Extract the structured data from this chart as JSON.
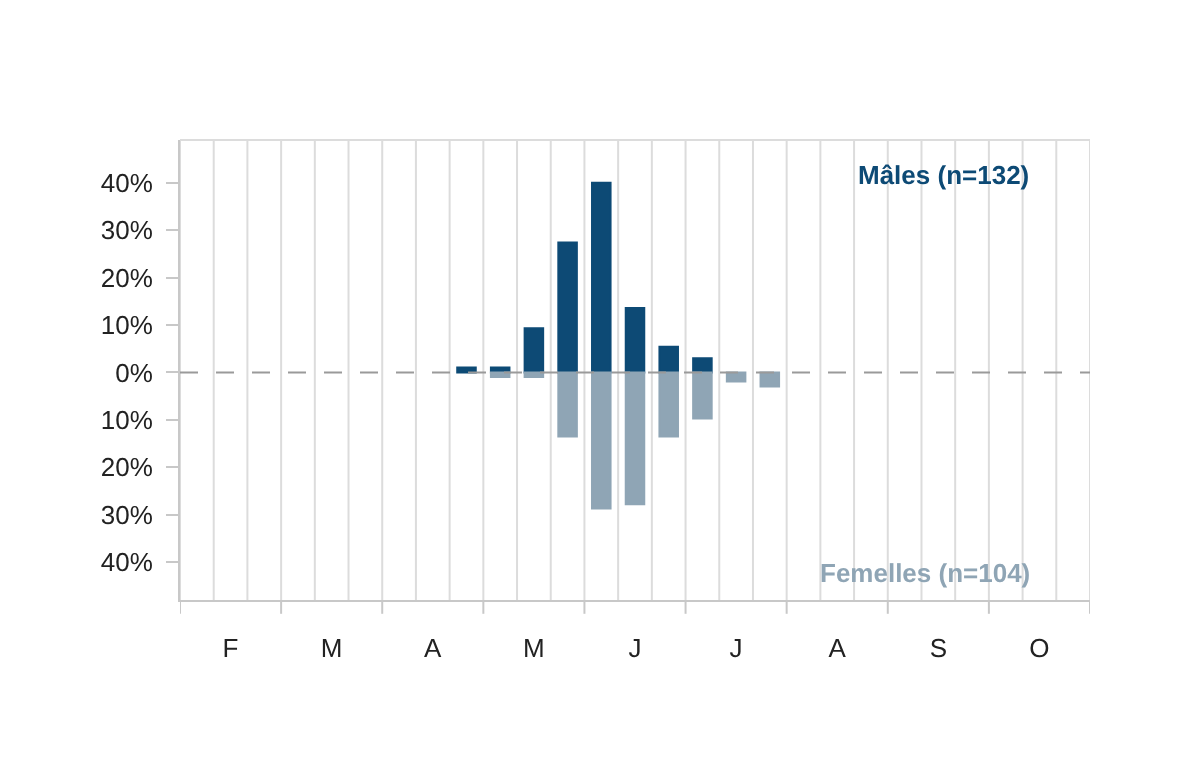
{
  "chart_data": {
    "type": "bar",
    "categories": [
      null,
      "F",
      null,
      null,
      "M",
      null,
      null,
      "A",
      null,
      null,
      "M",
      null,
      null,
      "J",
      null,
      null,
      "J",
      null,
      null,
      "A",
      null,
      null,
      "S",
      null,
      null,
      "O",
      null
    ],
    "series": [
      {
        "name": "Mâles (n=132)",
        "color": "#0d4a75",
        "values": [
          null,
          null,
          null,
          null,
          null,
          null,
          null,
          null,
          1,
          1,
          9.3,
          27.4,
          40,
          13.6,
          5.4,
          3,
          null,
          null,
          null,
          null,
          null,
          null,
          null,
          null,
          null,
          null,
          null
        ]
      },
      {
        "name": "Femelles (n=104)",
        "color": "#8fa5b5",
        "values": [
          null,
          null,
          null,
          null,
          null,
          null,
          null,
          null,
          null,
          -1,
          -1,
          -13.5,
          -28.7,
          -27.8,
          -13.5,
          -9.7,
          -1.9,
          -3,
          null,
          null,
          null,
          null,
          null,
          null,
          null,
          null,
          null
        ]
      }
    ],
    "ylim": [
      -48,
      49
    ],
    "yticks": [
      {
        "value": 40,
        "label": "40%"
      },
      {
        "value": 30,
        "label": "30%"
      },
      {
        "value": 20,
        "label": "20%"
      },
      {
        "value": 10,
        "label": "10%"
      },
      {
        "value": 0,
        "label": "0%"
      },
      {
        "value": -10,
        "label": "10%"
      },
      {
        "value": -20,
        "label": "20%"
      },
      {
        "value": -30,
        "label": "30%"
      },
      {
        "value": -40,
        "label": "40%"
      }
    ],
    "ref_lines": [
      {
        "axis": "y",
        "value": 0,
        "color": "#9a9a9a",
        "line_style": "dashed"
      }
    ],
    "grid": "x",
    "legend": false
  }
}
